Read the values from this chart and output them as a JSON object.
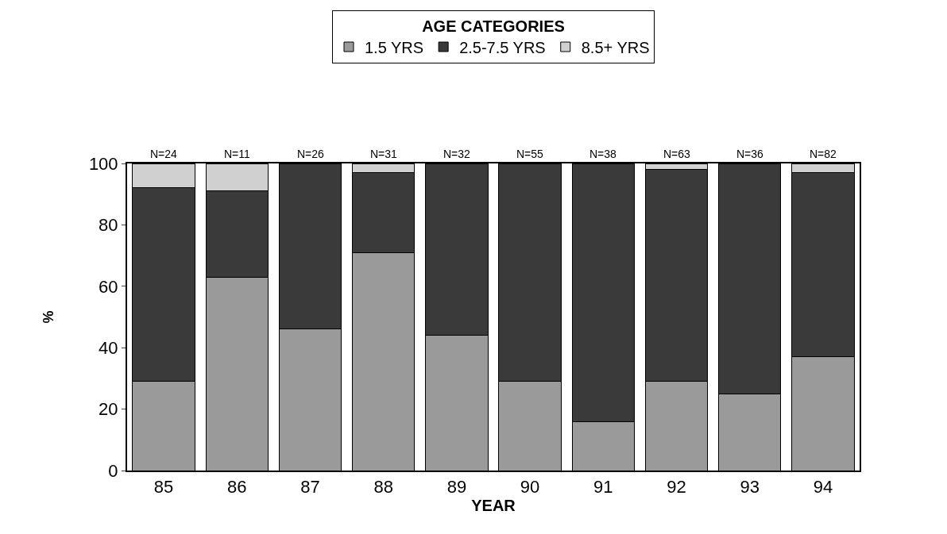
{
  "chart_data": {
    "type": "bar",
    "stacked": true,
    "xlabel": "YEAR",
    "ylabel": "%",
    "legend_title": "AGE CATEGORIES",
    "legend": "top",
    "categories": [
      "85",
      "86",
      "87",
      "88",
      "89",
      "90",
      "91",
      "92",
      "93",
      "94"
    ],
    "series": [
      {
        "name": "1.5 YRS",
        "color": "#9a9a9a",
        "values": [
          29,
          63,
          46,
          71,
          44,
          29,
          16,
          29,
          25,
          37
        ]
      },
      {
        "name": "2.5-7.5 YRS",
        "color": "#3a3a3a",
        "values": [
          63,
          28,
          54,
          26,
          56,
          71,
          84,
          69,
          75,
          60
        ]
      },
      {
        "name": "8.5+ YRS",
        "color": "#d0d0d0",
        "values": [
          8,
          9,
          0,
          3,
          0,
          0,
          0,
          2,
          0,
          3
        ]
      }
    ],
    "ylim": [
      0,
      100
    ],
    "yticks": [
      0,
      20,
      40,
      60,
      80,
      100
    ],
    "annotations": [
      {
        "text": "N=24",
        "x": "85",
        "y": 100
      },
      {
        "text": "N=11",
        "x": "86",
        "y": 100
      },
      {
        "text": "N=26",
        "x": "87",
        "y": 100
      },
      {
        "text": "N=31",
        "x": "88",
        "y": 100
      },
      {
        "text": "N=32",
        "x": "89",
        "y": 100
      },
      {
        "text": "N=55",
        "x": "90",
        "y": 100
      },
      {
        "text": "N=38",
        "x": "91",
        "y": 100
      },
      {
        "text": "N=63",
        "x": "92",
        "y": 100
      },
      {
        "text": "N=36",
        "x": "93",
        "y": 100
      },
      {
        "text": "N=82",
        "x": "94",
        "y": 100
      }
    ]
  }
}
